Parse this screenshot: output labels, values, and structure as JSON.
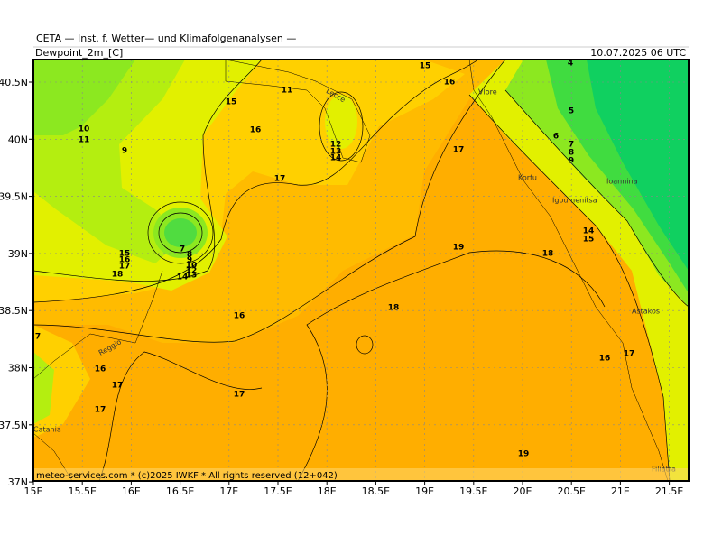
{
  "header": {
    "source": "CETA — Inst. f. Wetter— und Klimafolgenanalysen —",
    "parameter": "Dewpoint_2m_[C]",
    "valid_time": "10.07.2025 06 UTC"
  },
  "axes": {
    "x_labels": [
      "15E",
      "15.5E",
      "16E",
      "16.5E",
      "17E",
      "17.5E",
      "18E",
      "18.5E",
      "19E",
      "19.5E",
      "20E",
      "20.5E",
      "21E",
      "21.5E"
    ],
    "y_labels": [
      "40.5N",
      "40N",
      "39.5N",
      "39N",
      "38.5N",
      "38N",
      "37.5N",
      "37N"
    ]
  },
  "contour_labels": [
    "15",
    "16",
    "11",
    "15",
    "16",
    "12",
    "13",
    "14",
    "17",
    "17",
    "10",
    "11",
    "9",
    "4",
    "5",
    "6",
    "7",
    "8",
    "9",
    "7",
    "8",
    "9",
    "10",
    "12",
    "13",
    "14",
    "15",
    "16",
    "17",
    "18",
    "19",
    "18",
    "14",
    "15",
    "16",
    "18",
    "7",
    "16",
    "17",
    "17",
    "17",
    "16",
    "17",
    "19"
  ],
  "places": [
    "Lecce",
    "Vlore",
    "Korfu",
    "Igoumenitsa",
    "Ioannina",
    "Astakos",
    "Reggio",
    "Catania",
    "Filiatra"
  ],
  "footer": "meteo-services.com * (c)2025 IWKF * All rights reserved (12+042)"
}
